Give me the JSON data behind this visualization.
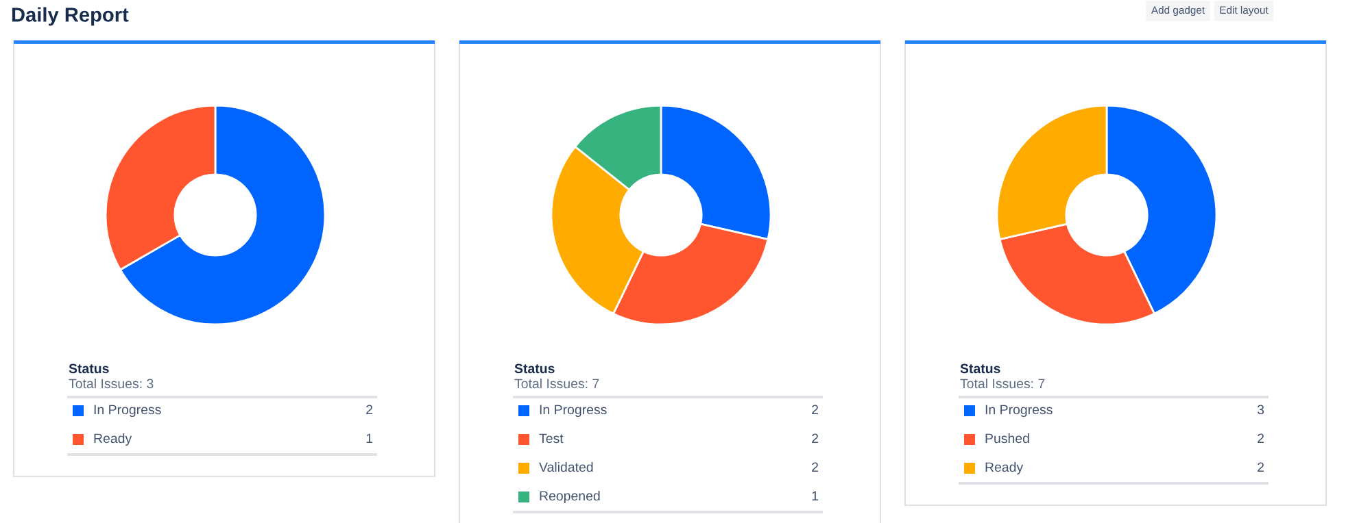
{
  "chart_data": [
    {
      "type": "other",
      "title": "Daily Report",
      "annotations": [
        "Add gadget",
        "Edit layout"
      ]
    },
    {
      "type": "donut",
      "title": "Status",
      "subtitle": "Total Issues: 3",
      "categories": [
        "In Progress",
        "Ready"
      ],
      "values": [
        2,
        1
      ],
      "colors": [
        "#0065ff",
        "#ff5630"
      ],
      "legend": "bottom",
      "data_labels": true
    },
    {
      "type": "donut",
      "title": "Status",
      "subtitle": "Total Issues: 7",
      "categories": [
        "In Progress",
        "Test",
        "Validated",
        "Reopened"
      ],
      "values": [
        2,
        2,
        2,
        1
      ],
      "colors": [
        "#0065ff",
        "#ff5630",
        "#ffab00",
        "#36b37e"
      ],
      "legend": "bottom",
      "data_labels": true
    },
    {
      "type": "donut",
      "title": "Status",
      "subtitle": "Total Issues: 7",
      "categories": [
        "In Progress",
        "Pushed",
        "Ready"
      ],
      "values": [
        3,
        2,
        2
      ],
      "colors": [
        "#0065ff",
        "#ff5630",
        "#ffab00"
      ],
      "legend": "bottom",
      "data_labels": true
    }
  ]
}
